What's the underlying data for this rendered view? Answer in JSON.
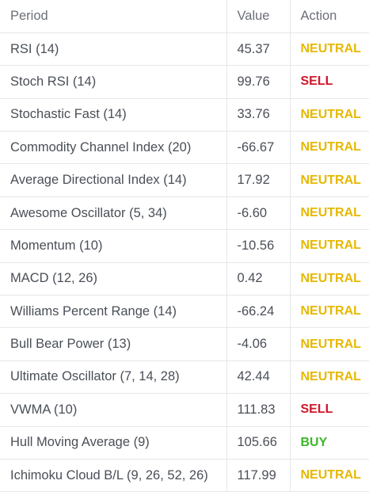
{
  "table": {
    "headers": {
      "period": "Period",
      "value": "Value",
      "action": "Action"
    },
    "rows": [
      {
        "period": "RSI (14)",
        "value": "45.37",
        "action": "NEUTRAL"
      },
      {
        "period": "Stoch RSI (14)",
        "value": "99.76",
        "action": "SELL"
      },
      {
        "period": "Stochastic Fast (14)",
        "value": "33.76",
        "action": "NEUTRAL"
      },
      {
        "period": "Commodity Channel Index (20)",
        "value": "-66.67",
        "action": "NEUTRAL"
      },
      {
        "period": "Average Directional Index (14)",
        "value": "17.92",
        "action": "NEUTRAL"
      },
      {
        "period": "Awesome Oscillator (5, 34)",
        "value": "-6.60",
        "action": "NEUTRAL"
      },
      {
        "period": "Momentum (10)",
        "value": "-10.56",
        "action": "NEUTRAL"
      },
      {
        "period": "MACD (12, 26)",
        "value": "0.42",
        "action": "NEUTRAL"
      },
      {
        "period": "Williams Percent Range (14)",
        "value": "-66.24",
        "action": "NEUTRAL"
      },
      {
        "period": "Bull Bear Power (13)",
        "value": "-4.06",
        "action": "NEUTRAL"
      },
      {
        "period": "Ultimate Oscillator (7, 14, 28)",
        "value": "42.44",
        "action": "NEUTRAL"
      },
      {
        "period": "VWMA (10)",
        "value": "111.83",
        "action": "SELL"
      },
      {
        "period": "Hull Moving Average (9)",
        "value": "105.66",
        "action": "BUY"
      },
      {
        "period": "Ichimoku Cloud B/L (9, 26, 52, 26)",
        "value": "117.99",
        "action": "NEUTRAL"
      }
    ]
  },
  "colors": {
    "neutral": "#e6b800",
    "sell": "#d0182a",
    "buy": "#3eb62b"
  }
}
